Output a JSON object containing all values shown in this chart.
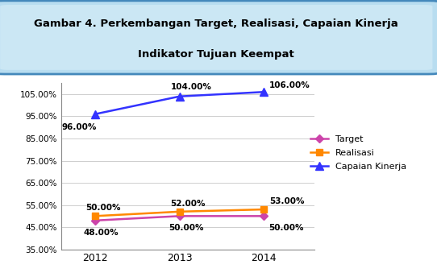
{
  "years": [
    2012,
    2013,
    2014
  ],
  "target": [
    48.0,
    50.0,
    50.0
  ],
  "realisasi": [
    50.0,
    52.0,
    53.0
  ],
  "capaian": [
    96.0,
    104.0,
    106.0
  ],
  "target_color": "#CC44AA",
  "realisasi_color": "#FF8800",
  "capaian_color": "#3333FF",
  "ylim_min": 35.0,
  "ylim_max": 110.0,
  "yticks": [
    35.0,
    45.0,
    55.0,
    65.0,
    75.0,
    85.0,
    95.0,
    105.0
  ],
  "title_line1": "Gambar 4. Perkembangan Target, Realisasi, Capaian Kinerja",
  "title_line2": "Indikator Tujuan Keempat",
  "legend_labels": [
    "Target",
    "Realisasi",
    "Capaian Kinerja"
  ],
  "bg_color": "#FFFFFF",
  "header_bg": "#B8DDF0",
  "header_inner": "#D8EEF8",
  "capaian_labels": [
    "96.00%",
    "104.00%",
    "106.00%"
  ],
  "realisasi_labels": [
    "50.00%",
    "52.00%",
    "53.00%"
  ],
  "target_labels": [
    "48.00%",
    "50.00%",
    "50.00%"
  ]
}
